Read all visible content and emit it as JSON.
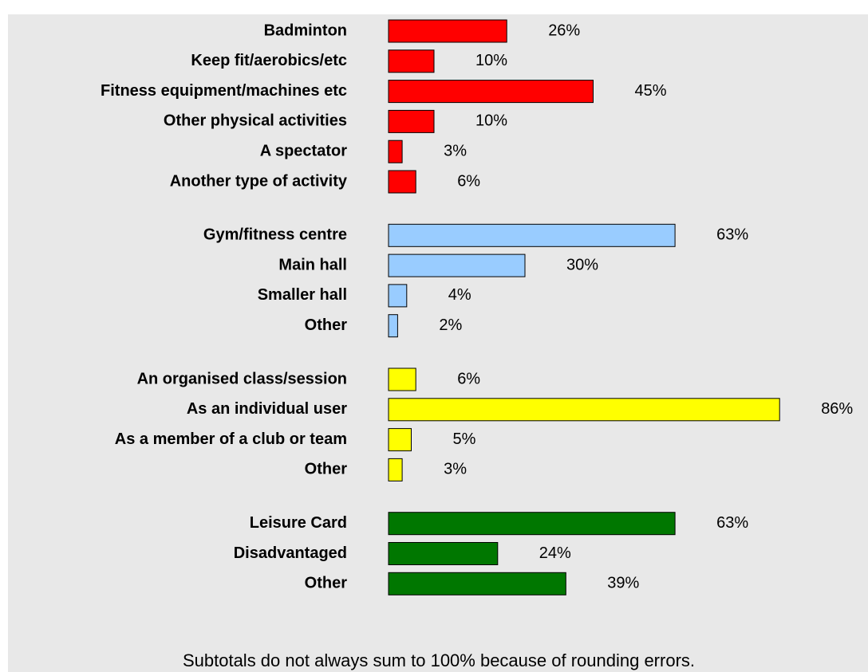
{
  "chart_data": {
    "type": "bar",
    "groups": [
      {
        "color": "#ff0000",
        "categories": [
          "Badminton",
          "Keep fit/aerobics/etc",
          "Fitness equipment/machines etc",
          "Other physical activities",
          "A spectator",
          "Another type of activity"
        ],
        "values": [
          26,
          10,
          45,
          10,
          3,
          6
        ],
        "value_labels": [
          "26%",
          "10%",
          "45%",
          "10%",
          "3%",
          "6%"
        ]
      },
      {
        "color": "#99ccff",
        "categories": [
          "Gym/fitness centre",
          "Main hall",
          "Smaller hall",
          "Other"
        ],
        "values": [
          63,
          30,
          4,
          2
        ],
        "value_labels": [
          "63%",
          "30%",
          "4%",
          "2%"
        ]
      },
      {
        "color": "#ffff00",
        "categories": [
          "An organised class/session",
          "As an individual user",
          "As a member of a club or team",
          "Other"
        ],
        "values": [
          6,
          86,
          5,
          3
        ],
        "value_labels": [
          "6%",
          "86%",
          "5%",
          "3%"
        ]
      },
      {
        "color": "#007700",
        "categories": [
          "Leisure Card",
          "Disadvantaged",
          "Other"
        ],
        "values": [
          63,
          24,
          39
        ],
        "value_labels": [
          "63%",
          "24%",
          "39%"
        ]
      }
    ],
    "xlim": [
      0,
      100
    ],
    "note": "Subtotals do not always sum to 100% because of rounding errors."
  }
}
